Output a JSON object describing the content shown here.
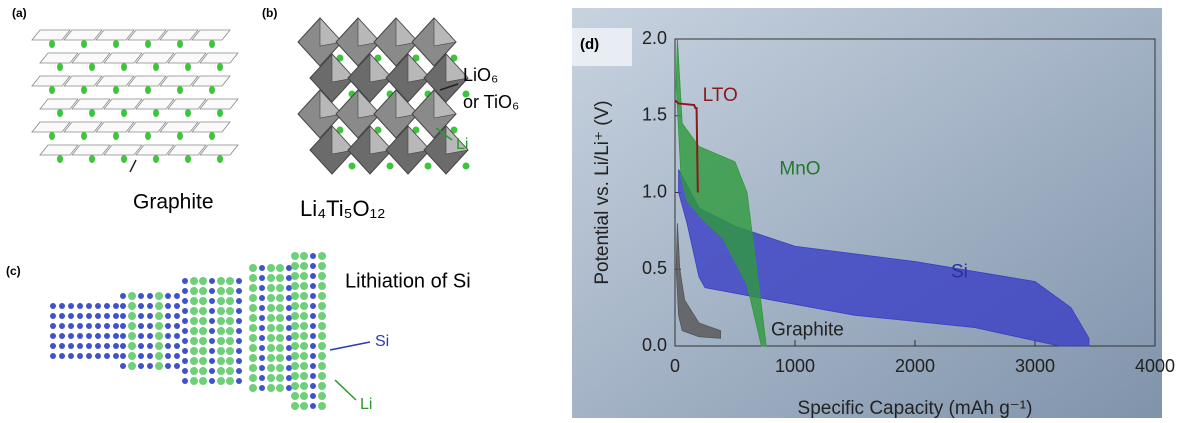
{
  "panels": {
    "a": {
      "label": "(a)",
      "caption": "Graphite"
    },
    "b": {
      "label": "(b)",
      "site_label": "LiO₆",
      "site_label_2": "or TiO₆",
      "li_label": "Li",
      "formula": "Li₄Ti₅O₁₂"
    },
    "c": {
      "label": "(c)",
      "title": "Lithiation of Si",
      "si_label": "Si",
      "li_label": "Li"
    }
  },
  "chart_data": {
    "type": "area",
    "panel_label": "(d)",
    "x_label": "Specific Capacity (mAh g⁻¹)",
    "y_label": "Potential vs. Li/Li⁺ (V)",
    "xlim": [
      0,
      4000
    ],
    "ylim": [
      0,
      2.0
    ],
    "xticks": [
      0,
      1000,
      2000,
      3000,
      4000
    ],
    "yticks": [
      {
        "value": 0,
        "label": "0.0"
      },
      0.5,
      {
        "value": 1,
        "label": "1.0"
      },
      1.5,
      {
        "value": 2,
        "label": "2.0"
      }
    ],
    "series": [
      {
        "name": "Si",
        "color": "#3a3fc4",
        "x": [
          30,
          200,
          500,
          1000,
          2000,
          3000,
          3300,
          3450,
          3450,
          3200,
          2500,
          1500,
          800,
          250,
          200,
          100,
          30
        ],
        "values": [
          1.15,
          0.9,
          0.78,
          0.65,
          0.55,
          0.42,
          0.25,
          0.05,
          0.0,
          0.0,
          0.12,
          0.2,
          0.3,
          0.38,
          0.45,
          0.8,
          1.0
        ]
      },
      {
        "name": "MnO",
        "color": "#2e9a3c",
        "x": [
          20,
          60,
          200,
          500,
          600,
          680,
          730,
          760,
          720,
          600,
          500,
          400,
          200,
          100,
          50,
          10
        ],
        "values": [
          2.0,
          1.45,
          1.3,
          1.2,
          1.0,
          0.5,
          0.2,
          0.0,
          0.0,
          0.4,
          0.55,
          0.7,
          0.85,
          0.95,
          1.1,
          1.7
        ]
      },
      {
        "name": "Graphite",
        "color": "#555555",
        "x": [
          20,
          40,
          80,
          200,
          380,
          380,
          200,
          60,
          30,
          10
        ],
        "values": [
          0.8,
          0.5,
          0.3,
          0.15,
          0.1,
          0.05,
          0.06,
          0.1,
          0.2,
          0.5
        ]
      },
      {
        "name": "LTO",
        "color": "#8b1a1a",
        "line": true,
        "x": [
          0,
          30,
          160,
          170,
          180,
          190
        ],
        "values": [
          1.6,
          1.58,
          1.57,
          1.55,
          1.55,
          1.0
        ]
      }
    ]
  }
}
